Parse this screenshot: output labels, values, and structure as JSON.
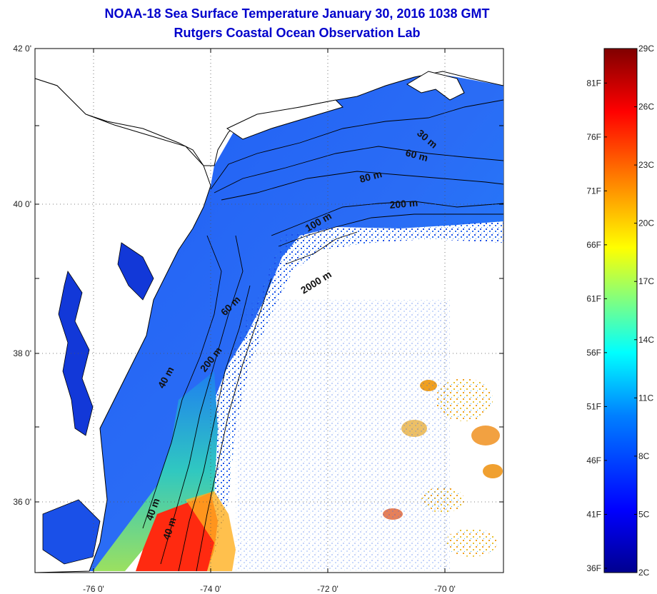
{
  "title": "NOAA-18 Sea Surface Temperature January 30, 2016 1038 GMT",
  "subtitle": "Rutgers Coastal Ocean Observation Lab",
  "map": {
    "lon_range": [
      -77.0,
      -69.0
    ],
    "lat_range": [
      35.0,
      42.0
    ],
    "x_ticks": [
      {
        "value": -76,
        "label": "-76 0'"
      },
      {
        "value": -74,
        "label": "-74 0'"
      },
      {
        "value": -72,
        "label": "-72 0'"
      },
      {
        "value": -70,
        "label": "-70 0'"
      }
    ],
    "y_ticks": [
      {
        "value": 42,
        "label": "42 0'"
      },
      {
        "value": 40,
        "label": "40 0'"
      },
      {
        "value": 38,
        "label": "38 0'"
      },
      {
        "value": 36,
        "label": "36 0'"
      }
    ],
    "grid": "dotted",
    "contour_labels": [
      "30 m",
      "60 m",
      "80 m",
      "200 m",
      "100 m",
      "2000 m",
      "60 m",
      "200 m",
      "40 m",
      "40 m",
      "40 m"
    ]
  },
  "colorbar": {
    "celsius_labels": [
      "29C",
      "26C",
      "23C",
      "20C",
      "17C",
      "14C",
      "11C",
      "8C",
      "5C",
      "2C"
    ],
    "fahrenheit_labels": [
      "81F",
      "76F",
      "71F",
      "66F",
      "61F",
      "56F",
      "51F",
      "46F",
      "41F",
      "36F"
    ],
    "celsius_range": [
      2,
      29
    ],
    "colors": [
      "#00008f",
      "#0000ff",
      "#0080ff",
      "#00ffff",
      "#80ff80",
      "#ffff00",
      "#ff8000",
      "#ff0000",
      "#800000"
    ]
  }
}
